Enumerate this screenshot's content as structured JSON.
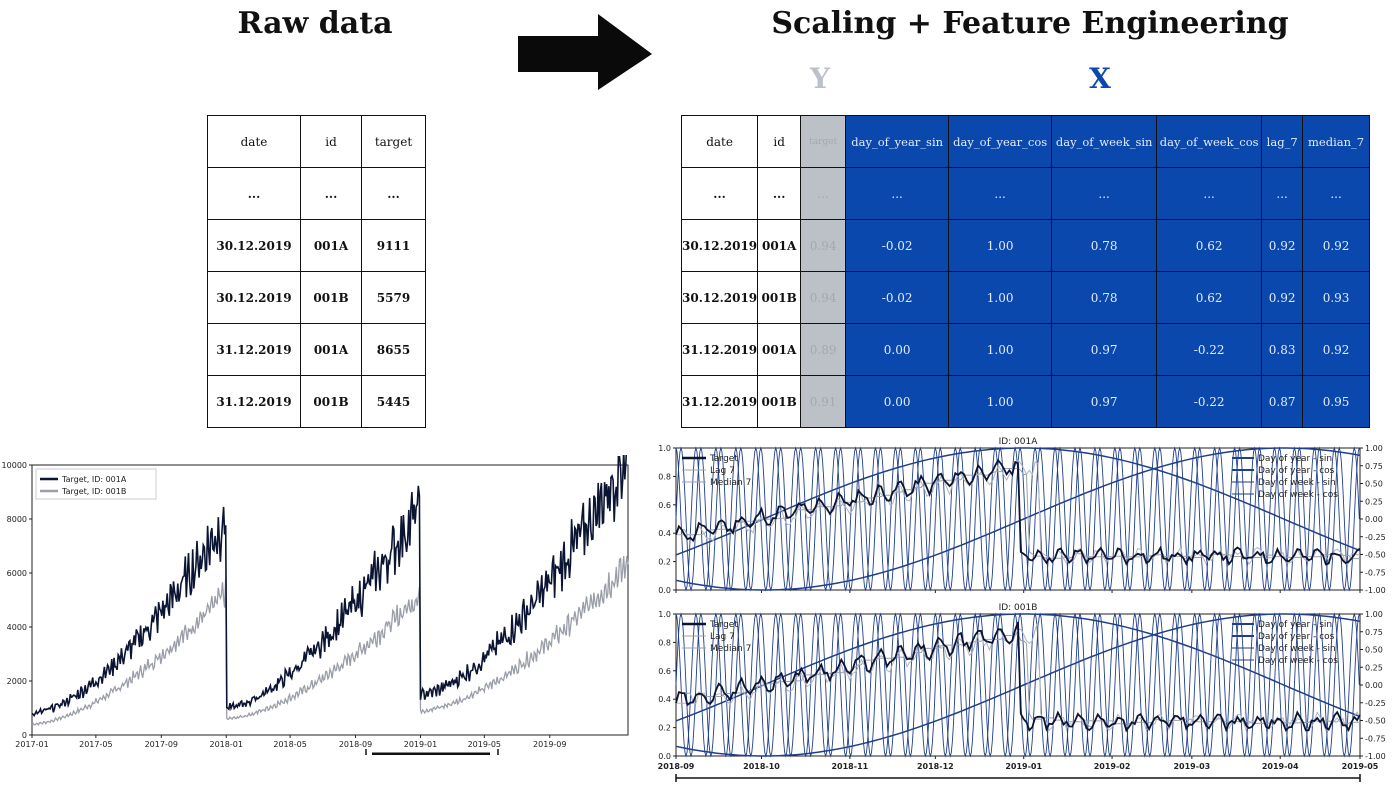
{
  "left_title": "Raw data",
  "right_title": "Scaling + Feature Engineering",
  "y_label": "Y",
  "x_label": "X",
  "raw_table": {
    "headers": [
      "date",
      "id",
      "target"
    ],
    "rows": [
      [
        "...",
        "...",
        "..."
      ],
      [
        "30.12.2019",
        "001A",
        "9111"
      ],
      [
        "30.12.2019",
        "001B",
        "5579"
      ],
      [
        "31.12.2019",
        "001A",
        "8655"
      ],
      [
        "31.12.2019",
        "001B",
        "5445"
      ]
    ]
  },
  "fe_table": {
    "headers": [
      "date",
      "id",
      "target",
      "day_of_year_sin",
      "day_of_year_cos",
      "day_of_week_sin",
      "day_of_week_cos",
      "lag_7",
      "median_7"
    ],
    "rows": [
      [
        "...",
        "...",
        "...",
        "...",
        "...",
        "...",
        "...",
        "...",
        "..."
      ],
      [
        "30.12.2019",
        "001A",
        "0.94",
        "-0.02",
        "1.00",
        "0.78",
        "0.62",
        "0.92",
        "0.92"
      ],
      [
        "30.12.2019",
        "001B",
        "0.94",
        "-0.02",
        "1.00",
        "0.78",
        "0.62",
        "0.92",
        "0.93"
      ],
      [
        "31.12.2019",
        "001A",
        "0.89",
        "0.00",
        "1.00",
        "0.97",
        "-0.22",
        "0.83",
        "0.92"
      ],
      [
        "31.12.2019",
        "001B",
        "0.91",
        "0.00",
        "1.00",
        "0.97",
        "-0.22",
        "0.87",
        "0.95"
      ]
    ]
  },
  "colors": {
    "accent_blue": "#0b48ad",
    "target_grey": "#bcc1c8",
    "series_dark": "#0c1433",
    "series_grey": "#9a9ea8",
    "feature_line": "#1f3f8a"
  },
  "chart_data": [
    {
      "type": "line",
      "title": "",
      "xlabel": "",
      "ylabel": "",
      "x_ticks": [
        "2017-01",
        "2017-05",
        "2017-09",
        "2018-01",
        "2018-05",
        "2018-09",
        "2019-01",
        "2019-05",
        "2019-09"
      ],
      "y_ticks": [
        "0",
        "2000",
        "4000",
        "6000",
        "8000",
        "10000"
      ],
      "ylim": [
        0,
        10000
      ],
      "legend": "top-left",
      "series": [
        {
          "name": "Target, ID: 001A",
          "yearly_start": [
            800,
            1000,
            1500
          ],
          "yearly_end": [
            8000,
            8500,
            9500
          ]
        },
        {
          "name": "Target, ID: 001B",
          "yearly_start": [
            400,
            600,
            900
          ],
          "yearly_end": [
            5300,
            5200,
            5800
          ]
        }
      ]
    },
    {
      "type": "line",
      "title": "ID: 001A",
      "x_ticks": [
        "2018-09",
        "2018-10",
        "2018-11",
        "2018-12",
        "2019-01",
        "2019-02",
        "2019-03",
        "2019-04",
        "2019-05"
      ],
      "y_ticks_left": [
        "0.0",
        "0.2",
        "0.4",
        "0.6",
        "0.8",
        "1.0"
      ],
      "y_ticks_right": [
        "-1.00",
        "-0.75",
        "-0.50",
        "-0.25",
        "0.00",
        "0.25",
        "0.50",
        "0.75",
        "1.00"
      ],
      "ylim_left": [
        0,
        1
      ],
      "ylim_right": [
        -1,
        1
      ],
      "legend_left": [
        "Target",
        "Lag 7",
        "Median 7"
      ],
      "legend_right": [
        "Day of year - sin",
        "Day of year - cos",
        "Day of week - sin",
        "Day of week - cos"
      ]
    },
    {
      "type": "line",
      "title": "ID: 001B",
      "x_ticks": [
        "2018-09",
        "2018-10",
        "2018-11",
        "2018-12",
        "2019-01",
        "2019-02",
        "2019-03",
        "2019-04",
        "2019-05"
      ],
      "y_ticks_left": [
        "0.0",
        "0.2",
        "0.4",
        "0.6",
        "0.8",
        "1.0"
      ],
      "y_ticks_right": [
        "-1.00",
        "-0.75",
        "-0.50",
        "-0.25",
        "0.00",
        "0.25",
        "0.50",
        "0.75",
        "1.00"
      ],
      "ylim_left": [
        0,
        1
      ],
      "ylim_right": [
        -1,
        1
      ],
      "legend_left": [
        "Target",
        "Lag 7",
        "Median 7"
      ],
      "legend_right": [
        "Day of year - sin",
        "Day of year - cos",
        "Day of week - sin",
        "Day of week - cos"
      ]
    }
  ]
}
